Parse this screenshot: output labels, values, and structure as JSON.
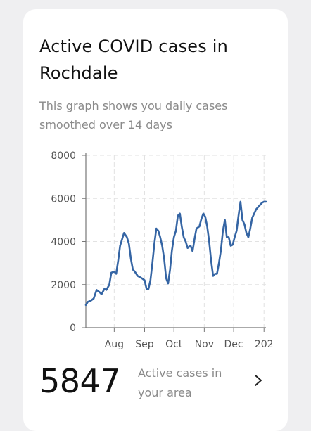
{
  "card": {
    "title": "Active COVID cases in Rochdale",
    "subtitle": "This graph shows you daily cases smoothed over 14 days"
  },
  "stats": {
    "count": "5847",
    "label": "Active cases in your area",
    "chevron_icon": "chevron-right-icon"
  },
  "colors": {
    "line": "#3565a4",
    "axis": "#777777",
    "grid": "#e2e2e2",
    "tick_label": "#555555"
  },
  "chart_data": {
    "type": "line",
    "title": "",
    "xlabel": "",
    "ylabel": "",
    "ylim": [
      0,
      8000
    ],
    "yticks": [
      0,
      2000,
      4000,
      6000,
      8000
    ],
    "xticks": [
      {
        "x": "2020-08-01",
        "label": "Aug"
      },
      {
        "x": "2020-09-01",
        "label": "Sep"
      },
      {
        "x": "2020-10-01",
        "label": "Oct"
      },
      {
        "x": "2020-11-01",
        "label": "Nov"
      },
      {
        "x": "2020-12-01",
        "label": "Dec"
      },
      {
        "x": "2021-01-01",
        "label": "202"
      }
    ],
    "xlim": [
      "2020-07-03",
      "2021-01-03"
    ],
    "grid": true,
    "series": [
      {
        "x": [
          "2020-07-03",
          "2020-07-05",
          "2020-07-08",
          "2020-07-11",
          "2020-07-14",
          "2020-07-17",
          "2020-07-19",
          "2020-07-22",
          "2020-07-24",
          "2020-07-27",
          "2020-07-29",
          "2020-08-01",
          "2020-08-03",
          "2020-08-05",
          "2020-08-07",
          "2020-08-09",
          "2020-08-11",
          "2020-08-14",
          "2020-08-16",
          "2020-08-18",
          "2020-08-20",
          "2020-08-22",
          "2020-08-25",
          "2020-08-27",
          "2020-08-29",
          "2020-09-01",
          "2020-09-03",
          "2020-09-05",
          "2020-09-07",
          "2020-09-09",
          "2020-09-11",
          "2020-09-13",
          "2020-09-15",
          "2020-09-17",
          "2020-09-19",
          "2020-09-21",
          "2020-09-23",
          "2020-09-25",
          "2020-09-27",
          "2020-09-29",
          "2020-10-01",
          "2020-10-03",
          "2020-10-05",
          "2020-10-07",
          "2020-10-09",
          "2020-10-11",
          "2020-10-13",
          "2020-10-15",
          "2020-10-18",
          "2020-10-20",
          "2020-10-22",
          "2020-10-24",
          "2020-10-27",
          "2020-10-29",
          "2020-10-31",
          "2020-11-02",
          "2020-11-04",
          "2020-11-06",
          "2020-11-08",
          "2020-11-10",
          "2020-11-12",
          "2020-11-14",
          "2020-11-16",
          "2020-11-18",
          "2020-11-20",
          "2020-11-22",
          "2020-11-24",
          "2020-11-26",
          "2020-11-28",
          "2020-11-30",
          "2020-12-02",
          "2020-12-04",
          "2020-12-06",
          "2020-12-08",
          "2020-12-10",
          "2020-12-12",
          "2020-12-14",
          "2020-12-16",
          "2020-12-18",
          "2020-12-20",
          "2020-12-22",
          "2020-12-24",
          "2020-12-26",
          "2020-12-28",
          "2020-12-30",
          "2021-01-01",
          "2021-01-03"
        ],
        "y": [
          1050,
          1200,
          1250,
          1350,
          1750,
          1650,
          1550,
          1800,
          1750,
          2000,
          2550,
          2600,
          2500,
          3100,
          3800,
          4100,
          4400,
          4200,
          3900,
          3200,
          2700,
          2600,
          2400,
          2350,
          2300,
          2200,
          1800,
          1800,
          2200,
          3000,
          3900,
          4600,
          4500,
          4200,
          3800,
          3200,
          2300,
          2050,
          2700,
          3600,
          4200,
          4500,
          5200,
          5300,
          4700,
          4200,
          4000,
          3700,
          3800,
          3550,
          4100,
          4600,
          4700,
          5050,
          5300,
          5150,
          4700,
          4000,
          3100,
          2400,
          2500,
          2500,
          3000,
          3600,
          4500,
          5000,
          4200,
          4200,
          3800,
          3850,
          4200,
          4500,
          5200,
          5847,
          5000,
          4800,
          4400,
          4200,
          4600,
          5100,
          5300,
          5500,
          5600,
          5700,
          5800,
          5847,
          5847
        ],
        "values_note": ""
      }
    ]
  }
}
